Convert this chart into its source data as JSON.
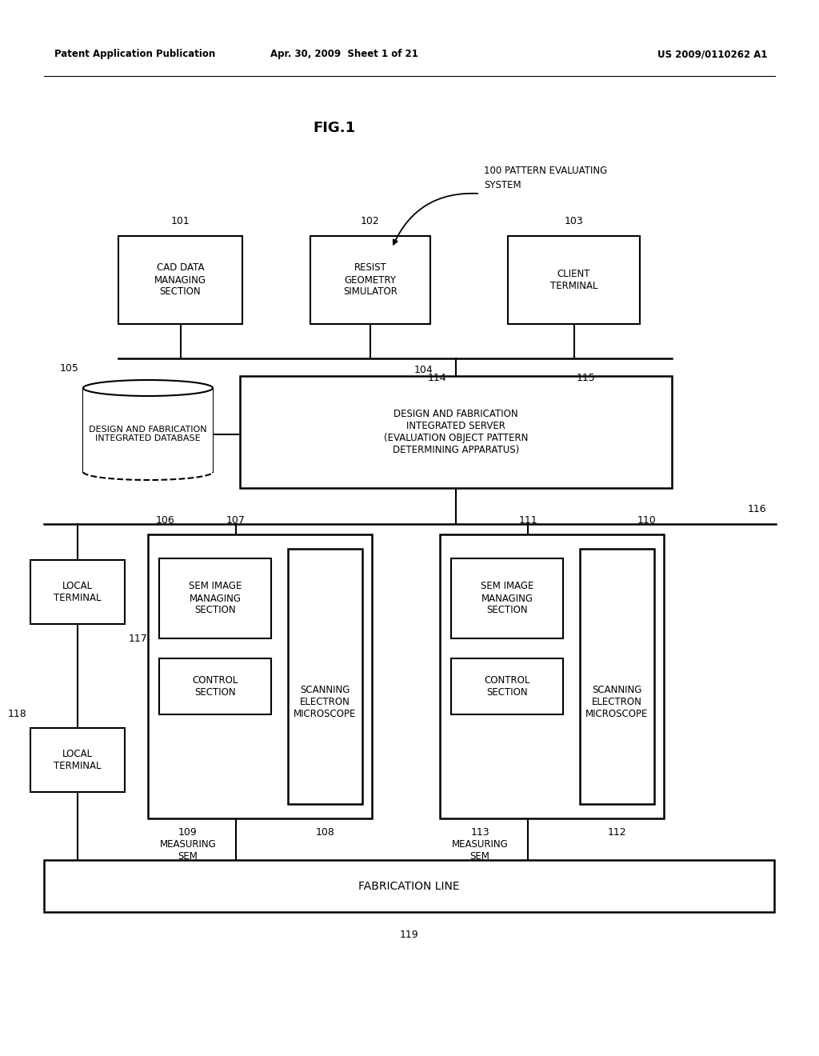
{
  "bg_color": "#ffffff",
  "header_left": "Patent Application Publication",
  "header_mid": "Apr. 30, 2009  Sheet 1 of 21",
  "header_right": "US 2009/0110262 A1",
  "fig_label": "FIG.1",
  "system_label": "100 PATTERN EVALUATING\nSYSTEM",
  "box101_label": "CAD DATA\nMANAGING\nSECTION",
  "box101_num": "101",
  "box102_label": "RESIST\nGEOMETRY\nSIMULATOR",
  "box102_num": "102",
  "box103_label": "CLIENT\nTERMINAL",
  "box103_num": "103",
  "server_label": "DESIGN AND FABRICATION\nINTEGRATED SERVER\n(EVALUATION OBJECT PATTERN\nDETERMINING APPARATUS)",
  "server_num": "104",
  "db_label": "DESIGN AND FABRICATION\nINTEGRATED DATABASE",
  "db_num": "105",
  "lt1_label": "LOCAL\nTERMINAL",
  "lt1_num": "117",
  "lt2_label": "LOCAL\nTERMINAL",
  "lt2_num": "118",
  "grp1_num": "106",
  "grp1_conn_num": "107",
  "sem1_label": "SEM IMAGE\nMANAGING\nSECTION",
  "ctrl1_label": "CONTROL\nSECTION",
  "scan1_label": "SCANNING\nELECTRON\nMICROSCOPE",
  "scan1_num": "108",
  "meas1_label": "MEASURING\nSEM",
  "meas1_num": "109",
  "grp2_num": "110",
  "grp2_conn_num": "111",
  "sem2_label": "SEM IMAGE\nMANAGING\nSECTION",
  "ctrl2_label": "CONTROL\nSECTION",
  "scan2_label": "SCANNING\nELECTRON\nMICROSCOPE",
  "scan2_num": "112",
  "meas2_label": "MEASURING\nSEM",
  "meas2_num": "113",
  "bus104_num": "104",
  "line114_num": "114",
  "line115_num": "115",
  "bus116_num": "116",
  "fab_label": "FABRICATION LINE",
  "fab_num": "119"
}
